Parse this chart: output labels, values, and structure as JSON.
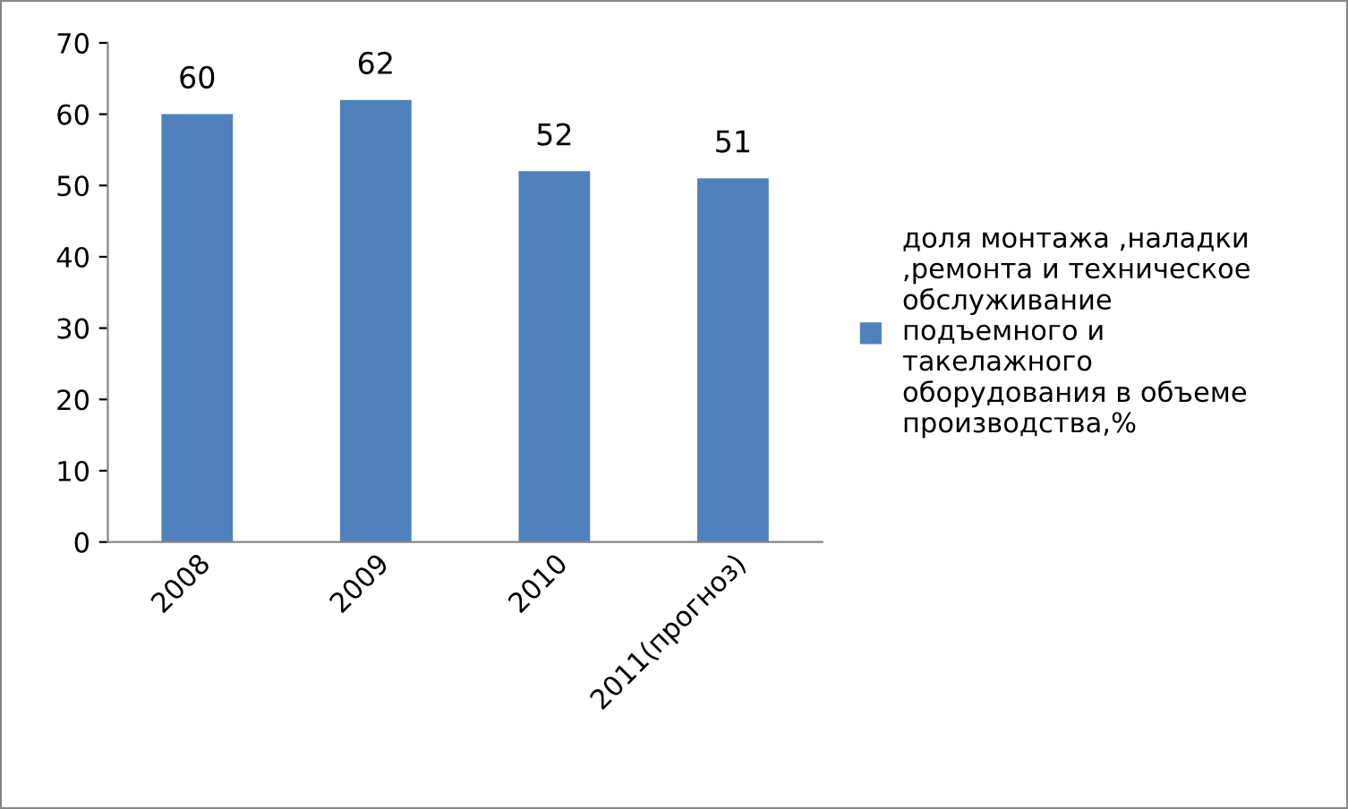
{
  "chart_data": {
    "type": "bar",
    "categories": [
      "2008",
      "2009",
      "2010",
      "2011(прогноз)"
    ],
    "series": [
      {
        "name": "доля монтажа ,наладки\n,ремонта и техническое\nобслуживание\nподъемного и\nтакелажного\nоборудования в объеме\nпроизводства,%",
        "color": "#4f81bd",
        "values": [
          60,
          62,
          52,
          51
        ]
      }
    ],
    "ylim": [
      0,
      70
    ],
    "yticks": [
      0,
      10,
      20,
      30,
      40,
      50,
      60,
      70
    ],
    "grid": false,
    "legend": "right",
    "data_labels": true
  }
}
